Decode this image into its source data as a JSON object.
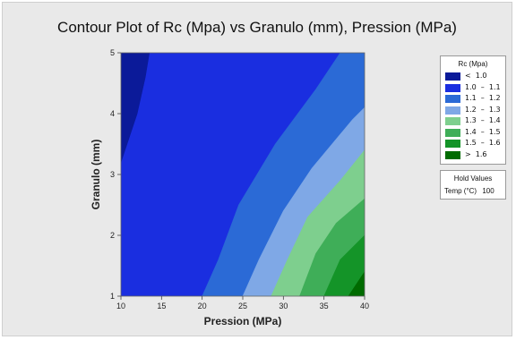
{
  "chart_data": {
    "type": "contour",
    "title": "Contour Plot of Rc (Mpa) vs Granulo (mm), Pression (MPa)",
    "xlabel": "Pression (MPa)",
    "ylabel": "Granulo (mm)",
    "xlim": [
      10,
      40
    ],
    "ylim": [
      1,
      5
    ],
    "xticks": [
      10,
      15,
      20,
      25,
      30,
      35,
      40
    ],
    "yticks": [
      1,
      2,
      3,
      4,
      5
    ],
    "grid": false,
    "legend_position": "right",
    "legend": {
      "title": "Rc (Mpa)",
      "levels": [
        {
          "label": "<  1.0",
          "color": "#0b1a99"
        },
        {
          "label": "1.0  –  1.1",
          "color": "#1a2ee0"
        },
        {
          "label": "1.1  –  1.2",
          "color": "#2b6ad6"
        },
        {
          "label": "1.2  –  1.3",
          "color": "#7fa8e6"
        },
        {
          "label": "1.3  –  1.4",
          "color": "#7ecf8e"
        },
        {
          "label": "1.4  –  1.5",
          "color": "#3fae58"
        },
        {
          "label": "1.5  –  1.6",
          "color": "#149428"
        },
        {
          "label": ">  1.6",
          "color": "#006b00"
        }
      ]
    },
    "boundaries": [
      {
        "level": 1.0,
        "points": [
          [
            10,
            3.2
          ],
          [
            12,
            4.0
          ],
          [
            13,
            4.6
          ],
          [
            13.5,
            5
          ]
        ]
      },
      {
        "level": 1.1,
        "points": [
          [
            20,
            1
          ],
          [
            22,
            1.6
          ],
          [
            24.5,
            2.5
          ],
          [
            29,
            3.5
          ],
          [
            34,
            4.4
          ],
          [
            37,
            5
          ]
        ]
      },
      {
        "level": 1.2,
        "points": [
          [
            25,
            1
          ],
          [
            27,
            1.6
          ],
          [
            30,
            2.4
          ],
          [
            33.5,
            3.1
          ],
          [
            38.5,
            3.9
          ],
          [
            40,
            4.1
          ]
        ]
      },
      {
        "level": 1.3,
        "points": [
          [
            28.5,
            1
          ],
          [
            30.5,
            1.6
          ],
          [
            33,
            2.3
          ],
          [
            37,
            2.9
          ],
          [
            40,
            3.4
          ]
        ]
      },
      {
        "level": 1.4,
        "points": [
          [
            32,
            1
          ],
          [
            34,
            1.7
          ],
          [
            36.5,
            2.2
          ],
          [
            40,
            2.6
          ]
        ]
      },
      {
        "level": 1.5,
        "points": [
          [
            35,
            1
          ],
          [
            37,
            1.6
          ],
          [
            40,
            2.0
          ]
        ]
      },
      {
        "level": 1.6,
        "points": [
          [
            38,
            1
          ],
          [
            40,
            1.4
          ]
        ]
      }
    ],
    "hold_values": {
      "title": "Hold Values",
      "name": "Temp (°C)",
      "value": "100"
    }
  }
}
